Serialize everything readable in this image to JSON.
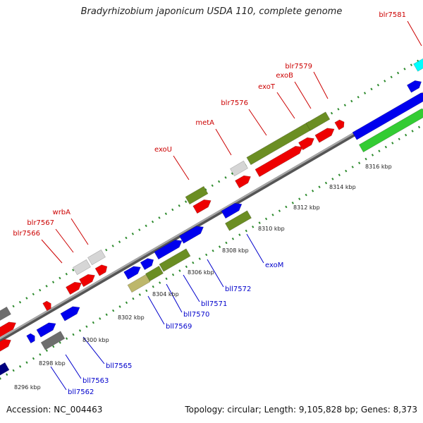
{
  "title": "Bradyrhizobium japonicum USDA 110, complete genome",
  "footer": {
    "accession": "Accession: NC_004463",
    "summary": "Topology: circular; Length: 9,105,828 bp; Genes: 8,373"
  },
  "colors": {
    "backbone": "#8c8c8c",
    "dots": "#2e8b2e",
    "forward_label": "#cc0000",
    "reverse_label": "#0000cc",
    "red": "#ee0000",
    "blue": "#0000ee",
    "olive": "#6b8e23",
    "khaki": "#bdb76b",
    "grey": "#6e6e6e",
    "lightgrey": "#d6d6d6",
    "green": "#33cc33",
    "cyan": "#00ffff",
    "navy": "#000080"
  },
  "ticks": [
    "8296 kbp",
    "8298 kbp",
    "8300 kbp",
    "8302 kbp",
    "8304 kbp",
    "8306 kbp",
    "8308 kbp",
    "8310 kbp",
    "8312 kbp",
    "8314 kbp",
    "8316 kbp"
  ],
  "forward_labels": [
    "blr7566",
    "blr7567",
    "wrbA",
    "exoU",
    "metA",
    "blr7576",
    "exoT",
    "exoB",
    "blr7579",
    "blr7581"
  ],
  "reverse_labels": [
    "bll7562",
    "bll7563",
    "bll7565",
    "bll7569",
    "bll7570",
    "bll7571",
    "bll7572",
    "exoM"
  ]
}
